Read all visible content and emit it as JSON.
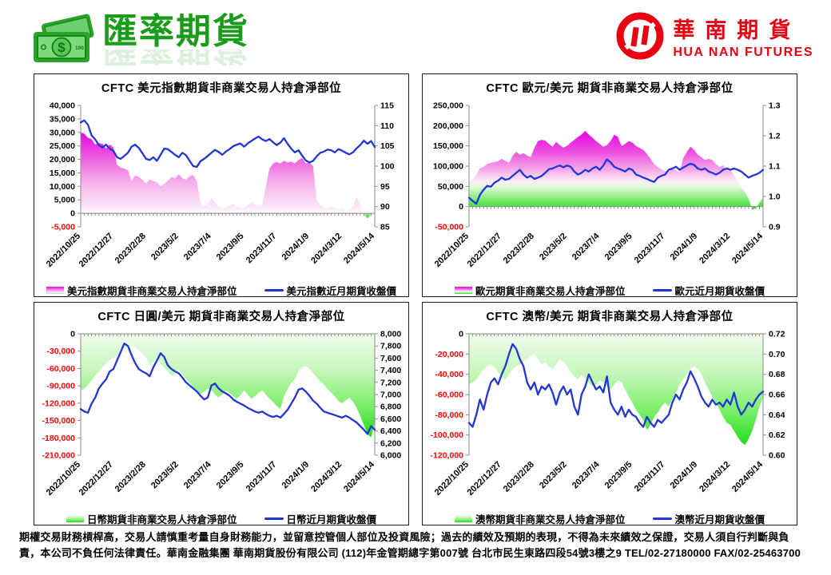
{
  "header": {
    "title": "匯率期貨",
    "brand_cn": "華南期貨",
    "brand_en": "HUA NAN FUTURES",
    "accent_green": "#1a9c1a",
    "brand_red": "#e60012"
  },
  "footer": {
    "line1": "期權交易財務槓桿高，交易人請慎重考量自身財務能力，並留意控管個人部位及投資風險；過去的績效及預期的表現，不得為未來績效之保證，交易人須自行判斷與負",
    "line2": "責，本公司不負任何法律責任。華南金融集團  華南期貨股份有限公司 (112)年金管期總字第007號  台北市民生東路四段54號3樓之9  TEL/02-27180000 FAX/02-25463700"
  },
  "chart_data": [
    {
      "type": "area",
      "title": "CFTC 美元指數期貨非商業交易人持倉淨部位",
      "x_labels": [
        "2022/10/25",
        "2022/12/27",
        "2023/2/28",
        "2023/5/2",
        "2023/7/4",
        "2023/9/5",
        "2023/11/7",
        "2024/1/9",
        "2024/3/12",
        "2024/5/14"
      ],
      "left_axis": {
        "min": -5000,
        "max": 40000,
        "step": 5000,
        "decimals": 0
      },
      "right_axis": {
        "min": 85,
        "max": 115,
        "step": 5,
        "decimals": 0
      },
      "legend": {
        "area_label": "美元指數期貨非商業交易人持倉淨部位",
        "line_label": "美元指數近月期貨收盤價"
      },
      "line_color": "#2136d2",
      "gradient": [
        {
          "o": 0,
          "c": "#e606e6"
        },
        {
          "o": 0.3,
          "c": "#ee5fe0"
        },
        {
          "o": 0.6,
          "c": "#f6b4ec"
        },
        {
          "o": 0.86,
          "c": "#fbe4f7"
        },
        {
          "o": 0.93,
          "c": "#fef9fd"
        },
        {
          "o": 0.945,
          "c": "#cdf3c6"
        },
        {
          "o": 1,
          "c": "#1ed81e"
        }
      ],
      "area": {
        "values": [
          30000,
          29500,
          28000,
          27500,
          25500,
          26000,
          25800,
          24000,
          25500,
          24500,
          18000,
          17000,
          16500,
          16000,
          12000,
          14000,
          13500,
          12500,
          11000,
          12500,
          12000,
          11500,
          10000,
          11000,
          12000,
          13500,
          13000,
          14500,
          13000,
          12500,
          13800,
          14200,
          12000,
          3500,
          2800,
          3200,
          5500,
          4000,
          2500,
          1800,
          2200,
          2800,
          3500,
          2500,
          2200,
          2000,
          3000,
          4000,
          3200,
          2800,
          3000,
          10000,
          16500,
          18500,
          19000,
          18500,
          19500,
          18800,
          19200,
          18500,
          19800,
          20500,
          18500,
          19000,
          17500,
          5000,
          3000,
          2200,
          1800,
          2500,
          2000,
          1500,
          2000,
          1000,
          1500,
          2500,
          6000,
          3000,
          -500,
          -1800,
          -500,
          2500
        ]
      },
      "line": {
        "values": [
          110.8,
          111.3,
          110.2,
          107.6,
          106.6,
          105.2,
          104.6,
          105.3,
          104.3,
          103.8,
          102.2,
          101.8,
          102.5,
          103.3,
          104.8,
          105.3,
          104.5,
          103.2,
          101.8,
          101.5,
          102.2,
          101.3,
          102.8,
          104.3,
          104.2,
          103.5,
          102.8,
          102.2,
          103.3,
          102.7,
          101.3,
          100.0,
          99.8,
          101.2,
          101.8,
          102.5,
          103.3,
          104.0,
          103.5,
          102.8,
          103.6,
          104.2,
          104.9,
          105.3,
          105.6,
          104.8,
          105.6,
          106.2,
          106.8,
          107.3,
          106.6,
          106.2,
          106.7,
          105.9,
          105.2,
          105.8,
          106.9,
          105.5,
          104.3,
          103.4,
          103.9,
          102.6,
          101.4,
          100.9,
          101.3,
          102.4,
          103.3,
          103.6,
          104.1,
          103.9,
          103.4,
          104.2,
          103.8,
          103.3,
          102.9,
          103.4,
          104.4,
          105.2,
          106.3,
          105.5,
          106.2,
          104.7
        ]
      }
    },
    {
      "type": "area",
      "title": "CFTC 歐元/美元 期貨非商業交易人持倉淨部位",
      "x_labels": [
        "2022/10/25",
        "2022/12/27",
        "2023/2/28",
        "2023/5/2",
        "2023/7/4",
        "2023/9/5",
        "2023/11/7",
        "2024/1/9",
        "2024/3/12",
        "2024/5/14"
      ],
      "left_axis": {
        "min": -50000,
        "max": 250000,
        "step": 50000,
        "decimals": 0
      },
      "right_axis": {
        "min": 0.9,
        "max": 1.3,
        "step": 0.1,
        "decimals": 1
      },
      "legend": {
        "area_label": "歐元期貨非商業交易人持倉淨部位",
        "line_label": "歐元近月期貨收盤價"
      },
      "line_color": "#2136d2",
      "gradient": [
        {
          "o": 0,
          "c": "#e606e6"
        },
        {
          "o": 0.25,
          "c": "#ec49de"
        },
        {
          "o": 0.5,
          "c": "#f6ace9"
        },
        {
          "o": 0.63,
          "c": "#fbeaf7"
        },
        {
          "o": 0.7,
          "c": "#e8fae3"
        },
        {
          "o": 0.82,
          "c": "#9fef91"
        },
        {
          "o": 1,
          "c": "#27df27"
        }
      ],
      "area": {
        "values": [
          62000,
          68000,
          78000,
          95000,
          98000,
          105000,
          108000,
          110000,
          112000,
          118000,
          113000,
          108000,
          125000,
          135000,
          128000,
          132000,
          126000,
          122000,
          145000,
          162000,
          165000,
          163000,
          155000,
          148000,
          160000,
          152000,
          146000,
          150000,
          158000,
          165000,
          172000,
          178000,
          187000,
          178000,
          170000,
          162000,
          155000,
          148000,
          152000,
          162000,
          178000,
          172000,
          150000,
          155000,
          162000,
          158000,
          150000,
          145000,
          140000,
          130000,
          118000,
          105000,
          98000,
          92000,
          88000,
          85000,
          95000,
          90000,
          85000,
          120000,
          135000,
          148000,
          140000,
          128000,
          122000,
          115000,
          118000,
          115000,
          105000,
          98000,
          102000,
          88000,
          90000,
          78000,
          62000,
          48000,
          35000,
          20000,
          -8000,
          -4000,
          10000,
          22000
        ]
      },
      "line": {
        "values": [
          0.996,
          0.985,
          0.976,
          1.005,
          1.022,
          1.035,
          1.032,
          1.045,
          1.052,
          1.062,
          1.055,
          1.058,
          1.068,
          1.078,
          1.088,
          1.072,
          1.062,
          1.068,
          1.058,
          1.062,
          1.068,
          1.078,
          1.09,
          1.092,
          1.098,
          1.102,
          1.096,
          1.102,
          1.098,
          1.082,
          1.072,
          1.078,
          1.088,
          1.082,
          1.092,
          1.098,
          1.088,
          1.102,
          1.122,
          1.112,
          1.098,
          1.092,
          1.088,
          1.082,
          1.092,
          1.088,
          1.072,
          1.068,
          1.062,
          1.058,
          1.052,
          1.048,
          1.062,
          1.068,
          1.072,
          1.088,
          1.092,
          1.098,
          1.088,
          1.095,
          1.102,
          1.108,
          1.104,
          1.092,
          1.088,
          1.092,
          1.082,
          1.078,
          1.072,
          1.078,
          1.088,
          1.092,
          1.088,
          1.092,
          1.088,
          1.082,
          1.072,
          1.062,
          1.068,
          1.072,
          1.078,
          1.088
        ]
      }
    },
    {
      "type": "area",
      "title": "CFTC 日圓/美元 期貨非商業交易人持倉淨部位",
      "x_labels": [
        "2022/10/25",
        "2022/12/27",
        "2023/2/28",
        "2023/5/2",
        "2023/7/4",
        "2023/9/5",
        "2023/11/7",
        "2024/1/9",
        "2024/3/12",
        "2024/5/14"
      ],
      "left_axis": {
        "min": -210000,
        "max": 0,
        "step": 30000,
        "decimals": 0
      },
      "right_axis": {
        "min": 6000,
        "max": 8000,
        "step": 200,
        "decimals": 0
      },
      "legend": {
        "area_label": "日幣期貨非商業交易人持倉淨部位",
        "line_label": "日幣近月期貨收盤價"
      },
      "line_color": "#2136d2",
      "gradient": [
        {
          "o": 0,
          "c": "#f2fcf0"
        },
        {
          "o": 0.35,
          "c": "#c6f7ba"
        },
        {
          "o": 0.7,
          "c": "#79ee67"
        },
        {
          "o": 1,
          "c": "#22dc22"
        }
      ],
      "area": {
        "values": [
          -98000,
          -95000,
          -88000,
          -80000,
          -72000,
          -65000,
          -58000,
          -50000,
          -46000,
          -42000,
          -38000,
          -30000,
          -25000,
          -20000,
          -18000,
          -22000,
          -28000,
          -35000,
          -40000,
          -55000,
          -48000,
          -42000,
          -52000,
          -58000,
          -65000,
          -72000,
          -68000,
          -62000,
          -70000,
          -78000,
          -85000,
          -92000,
          -98000,
          -104000,
          -100000,
          -95000,
          -98000,
          -105000,
          -110000,
          -105000,
          -98000,
          -102000,
          -108000,
          -112000,
          -106000,
          -98000,
          -105000,
          -112000,
          -108000,
          -102000,
          -98000,
          -105000,
          -112000,
          -118000,
          -125000,
          -130000,
          -108000,
          -95000,
          -85000,
          -78000,
          -65000,
          -58000,
          -56000,
          -60000,
          -68000,
          -75000,
          -82000,
          -88000,
          -95000,
          -102000,
          -108000,
          -116000,
          -120000,
          -115000,
          -110000,
          -118000,
          -128000,
          -142000,
          -158000,
          -174000,
          -179000,
          -153000
        ]
      },
      "line": {
        "values": [
          6760,
          6720,
          6700,
          6850,
          6950,
          7100,
          7180,
          7250,
          7380,
          7420,
          7560,
          7700,
          7840,
          7800,
          7650,
          7520,
          7420,
          7380,
          7350,
          7300,
          7450,
          7560,
          7680,
          7620,
          7480,
          7420,
          7380,
          7350,
          7280,
          7200,
          7150,
          7100,
          7050,
          6980,
          6920,
          6950,
          7150,
          7180,
          7100,
          7050,
          7020,
          6980,
          6920,
          6880,
          6850,
          6820,
          6780,
          6750,
          6720,
          6700,
          6720,
          6680,
          6650,
          6630,
          6650,
          6620,
          6680,
          6750,
          6850,
          6950,
          7080,
          7100,
          7050,
          6980,
          6900,
          6850,
          6780,
          6720,
          6700,
          6680,
          6660,
          6640,
          6620,
          6650,
          6620,
          6580,
          6540,
          6480,
          6420,
          6350,
          6480,
          6420
        ]
      }
    },
    {
      "type": "area",
      "title": "CFTC 澳幣/美元 期貨非商業交易人持倉淨部位",
      "x_labels": [
        "2022/10/25",
        "2022/12/27",
        "2023/2/28",
        "2023/5/2",
        "2023/7/4",
        "2023/9/5",
        "2023/11/7",
        "2024/1/9",
        "2024/3/12",
        "2024/5/14"
      ],
      "left_axis": {
        "min": -120000,
        "max": 0,
        "step": 20000,
        "decimals": 0
      },
      "right_axis": {
        "min": 0.6,
        "max": 0.72,
        "step": 0.02,
        "decimals": 2
      },
      "legend": {
        "area_label": "澳幣期貨非商業交易人持倉淨部位",
        "line_label": "澳幣近月期貨收盤價"
      },
      "line_color": "#2136d2",
      "gradient": [
        {
          "o": 0,
          "c": "#f2fcf0"
        },
        {
          "o": 0.35,
          "c": "#c6f7ba"
        },
        {
          "o": 0.7,
          "c": "#79ee67"
        },
        {
          "o": 1,
          "c": "#22dc22"
        }
      ],
      "area": {
        "values": [
          -50000,
          -48000,
          -45000,
          -40000,
          -35000,
          -32000,
          -30000,
          -33000,
          -38000,
          -42000,
          -45000,
          -40000,
          -35000,
          -32000,
          -30000,
          -28000,
          -25000,
          -22000,
          -20000,
          -25000,
          -30000,
          -28000,
          -32000,
          -35000,
          -30000,
          -25000,
          -28000,
          -32000,
          -38000,
          -42000,
          -45000,
          -40000,
          -44000,
          -48000,
          -52000,
          -50000,
          -46000,
          -48000,
          -52000,
          -55000,
          -50000,
          -46000,
          -48000,
          -55000,
          -62000,
          -68000,
          -75000,
          -80000,
          -85000,
          -95000,
          -90000,
          -82000,
          -78000,
          -72000,
          -68000,
          -72000,
          -65000,
          -58000,
          -50000,
          -45000,
          -40000,
          -35000,
          -32000,
          -35000,
          -40000,
          -48000,
          -55000,
          -62000,
          -68000,
          -75000,
          -82000,
          -88000,
          -90000,
          -96000,
          -102000,
          -107000,
          -110000,
          -104000,
          -96000,
          -85000,
          -72000,
          -63000
        ]
      },
      "line": {
        "values": [
          0.632,
          0.628,
          0.64,
          0.655,
          0.645,
          0.66,
          0.672,
          0.676,
          0.67,
          0.68,
          0.688,
          0.7,
          0.71,
          0.705,
          0.695,
          0.688,
          0.672,
          0.665,
          0.672,
          0.66,
          0.668,
          0.665,
          0.67,
          0.662,
          0.65,
          0.662,
          0.668,
          0.66,
          0.665,
          0.648,
          0.64,
          0.66,
          0.668,
          0.68,
          0.672,
          0.665,
          0.668,
          0.662,
          0.678,
          0.652,
          0.645,
          0.64,
          0.648,
          0.638,
          0.645,
          0.64,
          0.638,
          0.632,
          0.628,
          0.638,
          0.632,
          0.628,
          0.635,
          0.632,
          0.636,
          0.64,
          0.652,
          0.66,
          0.655,
          0.665,
          0.672,
          0.683,
          0.676,
          0.668,
          0.658,
          0.652,
          0.648,
          0.655,
          0.65,
          0.652,
          0.648,
          0.655,
          0.65,
          0.662,
          0.648,
          0.64,
          0.645,
          0.652,
          0.648,
          0.655,
          0.66,
          0.663
        ]
      }
    }
  ]
}
